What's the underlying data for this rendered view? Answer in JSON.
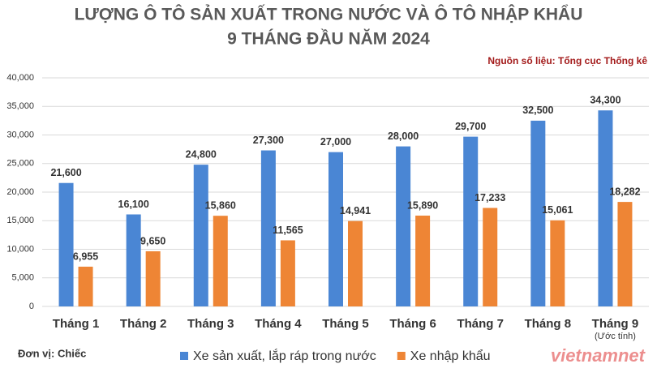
{
  "chart_data": {
    "type": "bar",
    "title": "LƯỢNG Ô TÔ SẢN XUẤT TRONG NƯỚC VÀ Ô TÔ NHẬP KHẨU",
    "subtitle": "9 THÁNG ĐẦU NĂM 2024",
    "source": "Nguồn số liệu: Tổng cục Thống kê",
    "unit": "Đơn vị: Chiếc",
    "annotation": "(Ước tính)",
    "watermark": "vietnamnet",
    "categories": [
      "Tháng 1",
      "Tháng 2",
      "Tháng 3",
      "Tháng 4",
      "Tháng 5",
      "Tháng 6",
      "Tháng 7",
      "Tháng 8",
      "Tháng 9"
    ],
    "series": [
      {
        "name": "Xe sản xuất, lắp ráp trong nước",
        "color": "#4a86d4",
        "values": [
          21600,
          16100,
          24800,
          27300,
          27000,
          28000,
          29700,
          32500,
          34300
        ],
        "value_labels": [
          "21,600",
          "16,100",
          "24,800",
          "27,300",
          "27,000",
          "28,000",
          "29,700",
          "32,500",
          "34,300"
        ]
      },
      {
        "name": "Xe nhập khẩu",
        "color": "#ee8535",
        "values": [
          6955,
          9650,
          15860,
          11565,
          14941,
          15890,
          17233,
          15061,
          18282
        ],
        "value_labels": [
          "6,955",
          "9,650",
          "15,860",
          "11,565",
          "14,941",
          "15,890",
          "17,233",
          "15,061",
          "18,282"
        ]
      }
    ],
    "ylim": [
      0,
      40000
    ],
    "yticks": [
      0,
      {
        "value": 5000,
        "label": "5,000"
      },
      {
        "value": 10000,
        "label": "10,000"
      },
      {
        "value": 15000,
        "label": "15,000"
      },
      {
        "value": 20000,
        "label": "20,000"
      },
      {
        "value": 25000,
        "label": "25,000"
      },
      {
        "value": 30000,
        "label": "30,000"
      },
      {
        "value": 35000,
        "label": "35,000"
      },
      {
        "value": 40000,
        "label": "40,000"
      }
    ],
    "grid": true
  }
}
